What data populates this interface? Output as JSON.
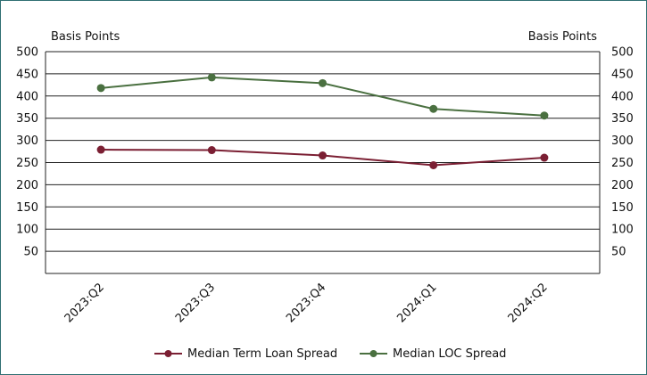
{
  "chart_data": {
    "type": "line",
    "title": "",
    "ylabel_left": "Basis Points",
    "ylabel_right": "Basis Points",
    "xlabel": "",
    "categories": [
      "2023:Q2",
      "2023:Q3",
      "2023:Q4",
      "2024:Q1",
      "2024:Q2"
    ],
    "ylim": [
      0,
      500
    ],
    "yticks": [
      50,
      100,
      150,
      200,
      250,
      300,
      350,
      400,
      450,
      500
    ],
    "grid": true,
    "legend_position": "bottom",
    "series": [
      {
        "name": "Median Term Loan Spread",
        "color": "#7b1f33",
        "values": [
          279,
          278,
          266,
          244,
          261
        ]
      },
      {
        "name": "Median LOC Spread",
        "color": "#4a7040",
        "values": [
          418,
          442,
          429,
          371,
          356
        ]
      }
    ]
  }
}
